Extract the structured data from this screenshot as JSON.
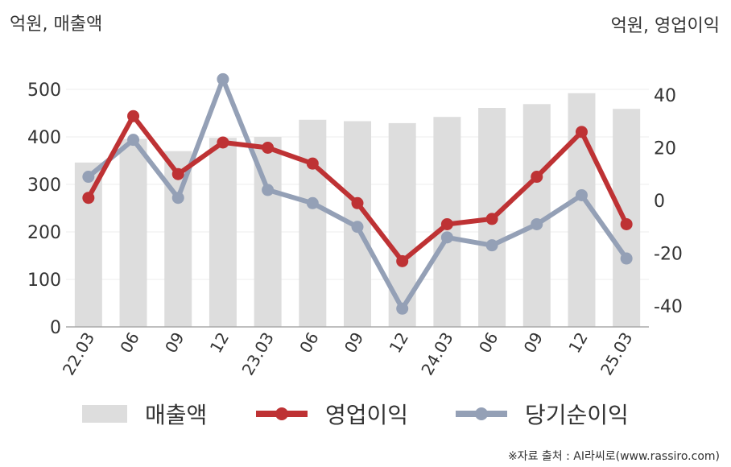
{
  "unit_left": "억원, 매출액",
  "unit_right": "억원, 영업이익",
  "source": "※자료 출처 : AI라씨로(www.rassiro.com)",
  "colors": {
    "bar": "#dddddd",
    "operating_profit": "#be3234",
    "net_income": "#94a0b6",
    "axis": "#aaaaaa",
    "grid": "#ececec"
  },
  "legend": {
    "revenue": "매출액",
    "operating_profit": "영업이익",
    "net_income": "당기순이익"
  },
  "chart_data": {
    "type": "bar",
    "categories": [
      "22.03",
      "06",
      "09",
      "12",
      "23.03",
      "06",
      "09",
      "12",
      "24.03",
      "06",
      "09",
      "12",
      "25.03"
    ],
    "left_axis": {
      "ticks": [
        "0",
        "100",
        "200",
        "300",
        "400",
        "500"
      ],
      "ylim": [
        0,
        550
      ]
    },
    "right_axis": {
      "ticks": [
        "-40",
        "-20",
        "0",
        "20",
        "40"
      ],
      "ylim": [
        -48,
        48
      ]
    },
    "series": [
      {
        "name": "매출액",
        "type": "bar",
        "axis": "left",
        "values": [
          346,
          396,
          370,
          398,
          400,
          436,
          433,
          429,
          442,
          461,
          469,
          492,
          459
        ]
      },
      {
        "name": "영업이익",
        "type": "line",
        "axis": "right",
        "values": [
          1,
          32,
          10,
          22,
          20,
          14,
          -1,
          -23,
          -9,
          -7,
          9,
          26,
          -9
        ]
      },
      {
        "name": "당기순이익",
        "type": "line",
        "axis": "right",
        "values": [
          9,
          23,
          1,
          46,
          4,
          -1,
          -10,
          -41,
          -14,
          -17,
          -9,
          2,
          -22
        ]
      }
    ]
  }
}
